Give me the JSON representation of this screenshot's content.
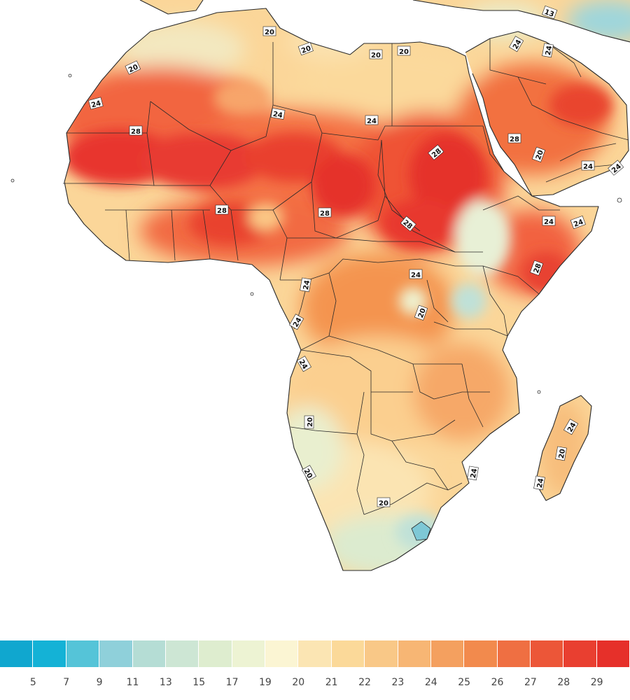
{
  "colors": {
    "sea": "#ffffff",
    "border": "#2a2a2a",
    "hot_core": "#e8352e",
    "hot": "#ef5a3a",
    "warm": "#f4884a",
    "mild": "#f8b36e",
    "cool": "#fbd699",
    "cooler": "#e5eccb",
    "cold": "#b9e2dc",
    "coldest": "#5bc6da"
  },
  "contour_labels": [
    {
      "text": "20"
    },
    {
      "text": "20"
    },
    {
      "text": "20"
    },
    {
      "text": "20"
    },
    {
      "text": "20"
    },
    {
      "text": "24"
    },
    {
      "text": "24"
    },
    {
      "text": "24"
    },
    {
      "text": "28"
    },
    {
      "text": "28"
    },
    {
      "text": "28"
    },
    {
      "text": "28"
    },
    {
      "text": "28"
    },
    {
      "text": "24"
    },
    {
      "text": "24"
    },
    {
      "text": "24"
    },
    {
      "text": "20"
    },
    {
      "text": "24"
    },
    {
      "text": "24"
    },
    {
      "text": "20"
    },
    {
      "text": "20"
    },
    {
      "text": "24"
    },
    {
      "text": "20"
    },
    {
      "text": "24"
    },
    {
      "text": "20"
    },
    {
      "text": "24"
    },
    {
      "text": "24"
    },
    {
      "text": "20"
    },
    {
      "text": "24"
    },
    {
      "text": "28"
    },
    {
      "text": "24"
    },
    {
      "text": "24"
    },
    {
      "text": "13"
    },
    {
      "text": "28"
    },
    {
      "text": "24"
    }
  ],
  "legend": {
    "colors": [
      "#10a7cf",
      "#14b2d6",
      "#55c4d8",
      "#8fd0da",
      "#b5ddd5",
      "#cde6d4",
      "#deedcf",
      "#edf3d3",
      "#fbf5d3",
      "#fbe5b3",
      "#fbd999",
      "#f9c887",
      "#f7b674",
      "#f4a05f",
      "#f28a4d",
      "#ef6f42",
      "#ec5638",
      "#e93f30",
      "#e6302a"
    ],
    "ticks": [
      "5",
      "7",
      "9",
      "11",
      "13",
      "15",
      "17",
      "19",
      "20",
      "21",
      "22",
      "23",
      "24",
      "25",
      "26",
      "27",
      "28",
      "29"
    ]
  }
}
